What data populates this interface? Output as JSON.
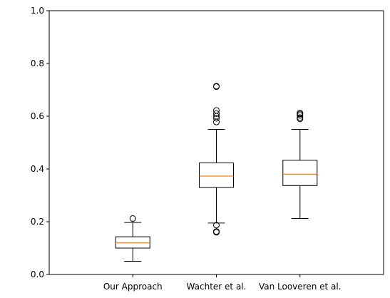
{
  "chart_data": {
    "type": "boxplot",
    "title": "",
    "xlabel": "",
    "ylabel": "",
    "ylim": [
      0,
      1
    ],
    "yticks": [
      "0.0",
      "0.2",
      "0.4",
      "0.6",
      "0.8",
      "1.0"
    ],
    "grid": false,
    "categories": [
      "Our Approach",
      "Wachter et al.",
      "Van Looveren et al."
    ],
    "boxes": [
      {
        "whisker_low": 0.05,
        "q1": 0.1,
        "median": 0.12,
        "q3": 0.143,
        "whisker_high": 0.197,
        "outliers": [
          0.212
        ]
      },
      {
        "whisker_low": 0.195,
        "q1": 0.33,
        "median": 0.373,
        "q3": 0.423,
        "whisker_high": 0.55,
        "outliers": [
          0.16,
          0.163,
          0.187,
          0.578,
          0.592,
          0.6,
          0.61,
          0.622,
          0.712,
          0.714
        ]
      },
      {
        "whisker_low": 0.212,
        "q1": 0.337,
        "median": 0.38,
        "q3": 0.433,
        "whisker_high": 0.55,
        "outliers": [
          0.59,
          0.595,
          0.603,
          0.608,
          0.612
        ]
      }
    ],
    "colors": {
      "box": "#000000",
      "median": "#ff7f0e",
      "axis": "#000000",
      "background": "#ffffff"
    }
  }
}
